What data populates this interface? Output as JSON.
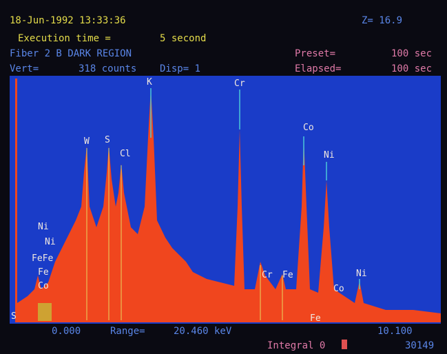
{
  "header": {
    "datetime": "18-Jun-1992 13:33:36",
    "z": "Z= 16.9",
    "exec_label": "Execution time =",
    "exec_value": "5 second",
    "region": "Fiber 2 B DARK REGION",
    "preset_label": "Preset=",
    "preset_value": "100 sec",
    "vert_label": "Vert=",
    "vert_value": "318 counts",
    "disp": "Disp= 1",
    "elapsed_label": "Elapsed=",
    "elapsed_value": "100 sec"
  },
  "peak_labels": [
    "K",
    "Cr",
    "W",
    "S",
    "Cl",
    "Co",
    "Ni",
    "Ni",
    "Ni",
    "FeFe",
    "Fe",
    "Co",
    "Cr",
    "Fe",
    "Co",
    "Ni",
    "Fe",
    "S"
  ],
  "footer": {
    "start": "0.000",
    "range_label": "Range=",
    "range_value": "20.460 keV",
    "end": "10.100",
    "integral": "Integral 0",
    "count": "30149"
  }
}
